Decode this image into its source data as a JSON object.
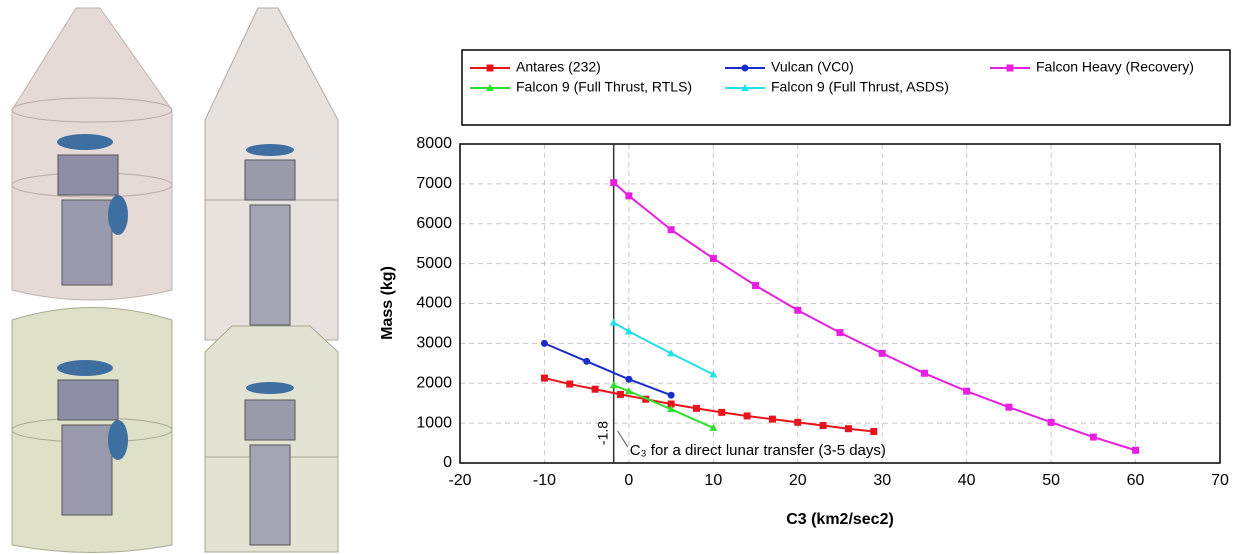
{
  "chart_data": {
    "type": "line",
    "x_label": "C3 (km2/sec2)",
    "y_label": "Mass (kg)",
    "xlim": [
      -20,
      70
    ],
    "xticks": [
      -20,
      -10,
      0,
      10,
      20,
      30,
      40,
      50,
      60,
      70
    ],
    "ylim": [
      0,
      8000
    ],
    "yticks": [
      0,
      1000,
      2000,
      3000,
      4000,
      5000,
      6000,
      7000,
      8000
    ],
    "grid": true,
    "legend": "top",
    "vline_x": -1.8,
    "annotation": "C₃ for a direct lunar transfer (3-5 days)",
    "series": [
      {
        "name": "Antares (232)",
        "color": "#e8141c",
        "marker": "square",
        "x": [
          -10,
          -7,
          -4,
          -1,
          2,
          5,
          8,
          11,
          14,
          17,
          20,
          23,
          26,
          29
        ],
        "values": [
          2130,
          1980,
          1850,
          1720,
          1600,
          1480,
          1370,
          1270,
          1180,
          1100,
          1020,
          940,
          860,
          790
        ]
      },
      {
        "name": "Vulcan (VC0)",
        "color": "#1a2ccc",
        "marker": "circle",
        "x": [
          -10,
          -5,
          0,
          5
        ],
        "values": [
          3000,
          2550,
          2100,
          1700
        ]
      },
      {
        "name": "Falcon Heavy (Recovery)",
        "color": "#e81ee0",
        "marker": "square",
        "x": [
          -1.8,
          0,
          5,
          10,
          15,
          20,
          25,
          30,
          35,
          40,
          45,
          50,
          55,
          60
        ],
        "values": [
          7030,
          6700,
          5850,
          5130,
          4450,
          3830,
          3270,
          2750,
          2250,
          1800,
          1400,
          1020,
          650,
          320
        ]
      },
      {
        "name": "Falcon 9 (Full Thrust, RTLS)",
        "color": "#2ee02e",
        "marker": "triangle",
        "x": [
          -1.8,
          0,
          5,
          10
        ],
        "values": [
          1950,
          1800,
          1350,
          880
        ]
      },
      {
        "name": "Falcon 9 (Full Thrust, ASDS)",
        "color": "#20e0e8",
        "marker": "triangle",
        "x": [
          -1.8,
          0,
          5,
          10
        ],
        "values": [
          3520,
          3300,
          2750,
          2220
        ]
      }
    ]
  }
}
